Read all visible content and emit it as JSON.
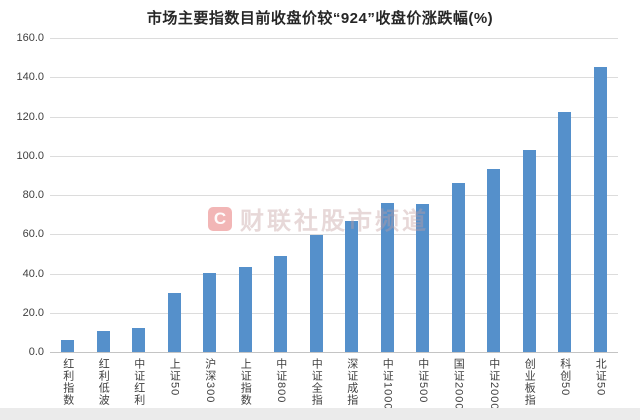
{
  "chart_data": {
    "type": "bar",
    "title": "市场主要指数目前收盘价较“924”收盘价涨跌幅(%)",
    "categories": [
      "红利指数",
      "红利低波",
      "中证红利",
      "上证50",
      "沪深300",
      "上证指数",
      "中证800",
      "中证全指",
      "深证成指",
      "中证1000",
      "中证500",
      "国证2000",
      "中证2000",
      "创业板指",
      "科创50",
      "北证50"
    ],
    "values": [
      6.0,
      10.8,
      12.0,
      30.0,
      40.5,
      43.5,
      49.0,
      59.5,
      67.0,
      75.8,
      75.3,
      86.0,
      93.2,
      102.8,
      122.4,
      145.3
    ],
    "xlabel": "",
    "ylabel": "",
    "ylim": [
      0,
      160
    ],
    "y_tick_step": 20,
    "y_tick_labels": [
      "0.0",
      "20.0",
      "40.0",
      "60.0",
      "80.0",
      "100.0",
      "120.0",
      "140.0",
      "160.0"
    ],
    "grid": "horizontal",
    "legend_position": "none",
    "bar_color": "#5590cb",
    "gridline_color": "#dcdcdc",
    "axis_line_color": "#c4c4c4",
    "tick_label_color": "#404040",
    "title_color": "#262626"
  },
  "watermark": {
    "logo_letter": "C",
    "text": "财联社股市频道"
  }
}
